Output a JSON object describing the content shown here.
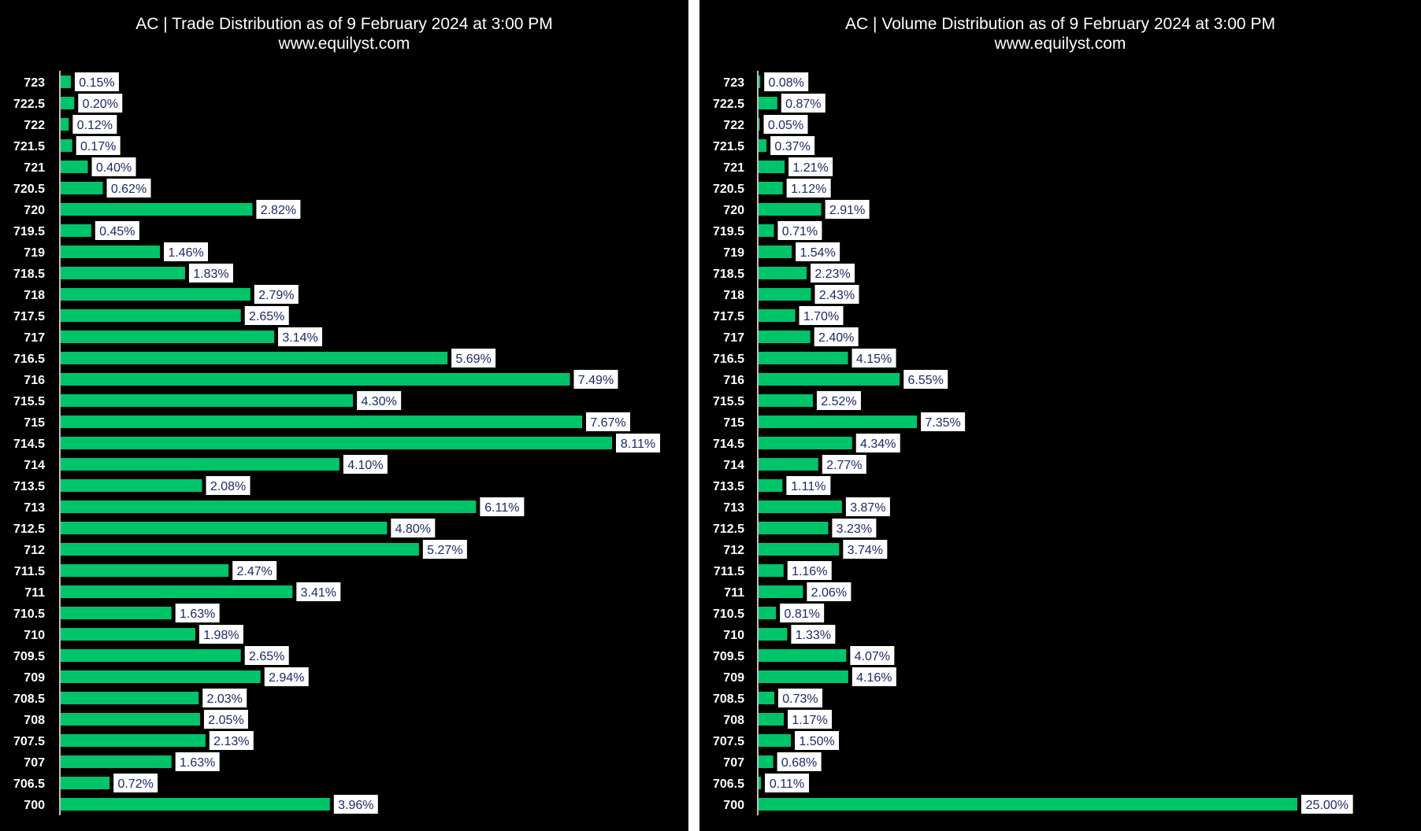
{
  "colors": {
    "background": "#000000",
    "bar": "#00c46a",
    "label_box": "#ffffff",
    "label_text": "#1b2a6b",
    "text": "#ffffff"
  },
  "chart_data": [
    {
      "type": "bar",
      "orientation": "horizontal",
      "title": "AC | Trade Distribution as of 9 February 2024 at 3:00 PM",
      "subtitle": "www.equilyst.com",
      "categories": [
        "723",
        "722.5",
        "722",
        "721.5",
        "721",
        "720.5",
        "720",
        "719.5",
        "719",
        "718.5",
        "718",
        "717.5",
        "717",
        "716.5",
        "716",
        "715.5",
        "715",
        "714.5",
        "714",
        "713.5",
        "713",
        "712.5",
        "712",
        "711.5",
        "711",
        "710.5",
        "710",
        "709.5",
        "709",
        "708.5",
        "708",
        "707.5",
        "707",
        "706.5",
        "700"
      ],
      "values": [
        0.15,
        0.2,
        0.12,
        0.17,
        0.4,
        0.62,
        2.82,
        0.45,
        1.46,
        1.83,
        2.79,
        2.65,
        3.14,
        5.69,
        7.49,
        4.3,
        7.67,
        8.11,
        4.1,
        2.08,
        6.11,
        4.8,
        5.27,
        2.47,
        3.41,
        1.63,
        1.98,
        2.65,
        2.94,
        2.03,
        2.05,
        2.13,
        1.63,
        0.72,
        3.96
      ],
      "labels": [
        "0.15%",
        "0.20%",
        "0.12%",
        "0.17%",
        "0.40%",
        "0.62%",
        "2.82%",
        "0.45%",
        "1.46%",
        "1.83%",
        "2.79%",
        "2.65%",
        "3.14%",
        "5.69%",
        "7.49%",
        "4.30%",
        "7.67%",
        "8.11%",
        "4.10%",
        "2.08%",
        "6.11%",
        "4.80%",
        "5.27%",
        "2.47%",
        "3.41%",
        "1.63%",
        "1.98%",
        "2.65%",
        "2.94%",
        "2.03%",
        "2.05%",
        "2.13%",
        "1.63%",
        "0.72%",
        "3.96%"
      ],
      "xlim": [
        0,
        8.11
      ],
      "grid": false
    },
    {
      "type": "bar",
      "orientation": "horizontal",
      "title": "AC | Volume Distribution as of 9 February 2024 at 3:00 PM",
      "subtitle": "www.equilyst.com",
      "categories": [
        "723",
        "722.5",
        "722",
        "721.5",
        "721",
        "720.5",
        "720",
        "719.5",
        "719",
        "718.5",
        "718",
        "717.5",
        "717",
        "716.5",
        "716",
        "715.5",
        "715",
        "714.5",
        "714",
        "713.5",
        "713",
        "712.5",
        "712",
        "711.5",
        "711",
        "710.5",
        "710",
        "709.5",
        "709",
        "708.5",
        "708",
        "707.5",
        "707",
        "706.5",
        "700"
      ],
      "values": [
        0.08,
        0.87,
        0.05,
        0.37,
        1.21,
        1.12,
        2.91,
        0.71,
        1.54,
        2.23,
        2.43,
        1.7,
        2.4,
        4.15,
        6.55,
        2.52,
        7.35,
        4.34,
        2.77,
        1.11,
        3.87,
        3.23,
        3.74,
        1.16,
        2.06,
        0.81,
        1.33,
        4.07,
        4.16,
        0.73,
        1.17,
        1.5,
        0.68,
        0.11,
        25.0
      ],
      "labels": [
        "0.08%",
        "0.87%",
        "0.05%",
        "0.37%",
        "1.21%",
        "1.12%",
        "2.91%",
        "0.71%",
        "1.54%",
        "2.23%",
        "2.43%",
        "1.70%",
        "2.40%",
        "4.15%",
        "6.55%",
        "2.52%",
        "7.35%",
        "4.34%",
        "2.77%",
        "1.11%",
        "3.87%",
        "3.23%",
        "3.74%",
        "1.16%",
        "2.06%",
        "0.81%",
        "1.33%",
        "4.07%",
        "4.16%",
        "0.73%",
        "1.17%",
        "1.50%",
        "0.68%",
        "0.11%",
        "25.00%"
      ],
      "xlim": [
        0,
        25.0
      ],
      "grid": false
    }
  ]
}
